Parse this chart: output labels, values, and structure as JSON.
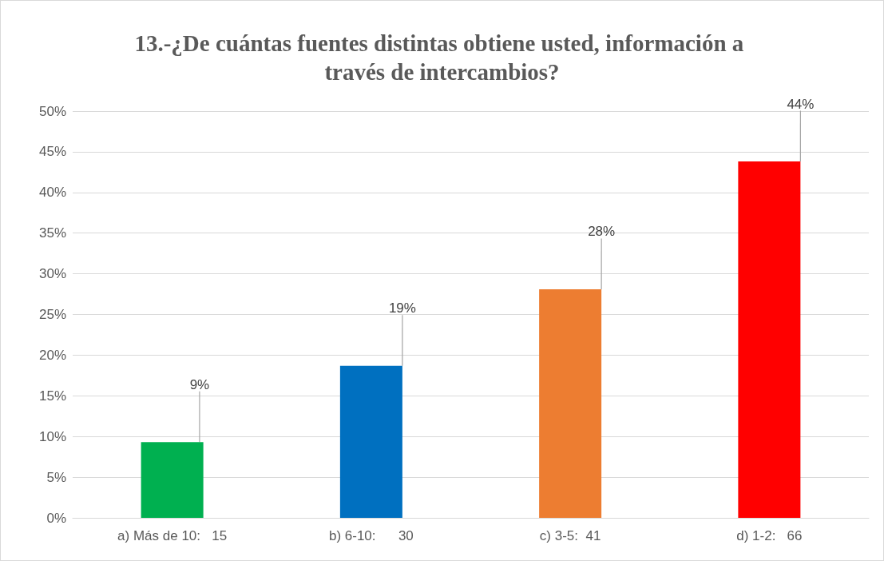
{
  "chart_data": {
    "type": "bar",
    "title": "13.-¿De cuántas fuentes distintas obtiene usted, información a través de intercambios?",
    "categories": [
      "a) Más de 10:   15",
      "b) 6-10:      30",
      "c) 3-5:  41",
      "d) 1-2:   66"
    ],
    "values": [
      9.3,
      18.7,
      28.1,
      43.8
    ],
    "colors": [
      "#00b050",
      "#0070c0",
      "#ed7d31",
      "#ff0000"
    ],
    "value_labels": [
      "9%",
      "19%",
      "28%",
      "44%"
    ],
    "ylim": [
      0,
      50
    ],
    "yticks": [
      {
        "value": 0,
        "label": "0%"
      },
      {
        "value": 5,
        "label": "5%"
      },
      {
        "value": 10,
        "label": "10%"
      },
      {
        "value": 15,
        "label": "15%"
      },
      {
        "value": 20,
        "label": "20%"
      },
      {
        "value": 25,
        "label": "25%"
      },
      {
        "value": 30,
        "label": "30%"
      },
      {
        "value": 35,
        "label": "35%"
      },
      {
        "value": 40,
        "label": "40%"
      },
      {
        "value": 45,
        "label": "45%"
      },
      {
        "value": 50,
        "label": "50%"
      }
    ],
    "grid": "y"
  }
}
